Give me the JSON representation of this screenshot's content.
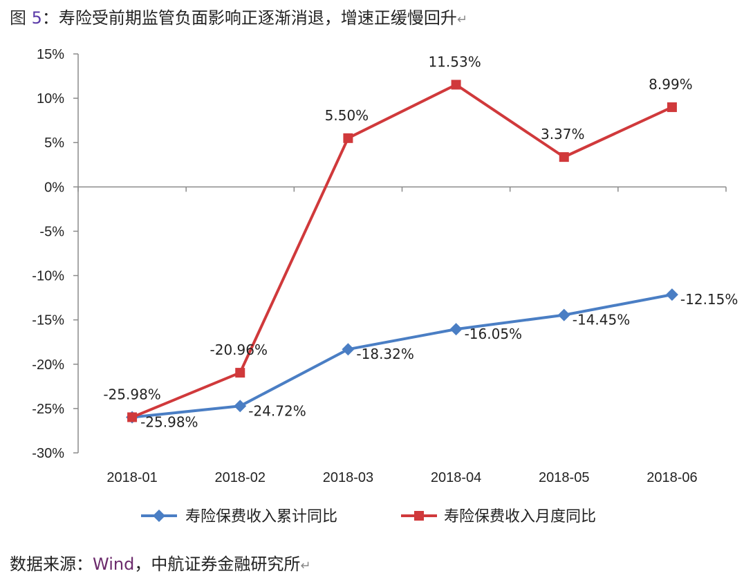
{
  "header": {
    "prefix": "图",
    "number": "5",
    "sep": "：",
    "title": "寿险受前期监管负面影响正逐渐消退，增速正缓慢回升",
    "return_mark": "↵"
  },
  "source": {
    "label": "数据来源：",
    "brand": "Wind",
    "rest": "，中航证券金融研究所",
    "return_mark": "↵"
  },
  "chart_data": {
    "type": "line",
    "categories": [
      "2018-01",
      "2018-02",
      "2018-03",
      "2018-04",
      "2018-05",
      "2018-06"
    ],
    "ylim": [
      -30,
      15
    ],
    "yticks": [
      15,
      10,
      5,
      0,
      -5,
      -10,
      -15,
      -20,
      -25,
      -30
    ],
    "ytick_suffix": "%",
    "grid": false,
    "legend": "bottom",
    "series": [
      {
        "name": "寿险保费收入累计同比",
        "color": "#4a7ec4",
        "marker": "diamond",
        "values": [
          -25.98,
          -24.72,
          -18.32,
          -16.05,
          -14.45,
          -12.15
        ],
        "labels": [
          "-25.98%",
          "-24.72%",
          "-18.32%",
          "-16.05%",
          "-14.45%",
          "-12.15%"
        ]
      },
      {
        "name": "寿险保费收入月度同比",
        "color": "#d0393b",
        "marker": "square",
        "values": [
          -25.98,
          -20.96,
          5.5,
          11.53,
          3.37,
          8.99
        ],
        "labels": [
          "-25.98%",
          "-20.96%",
          "5.50%",
          "11.53%",
          "3.37%",
          "8.99%"
        ]
      }
    ]
  }
}
